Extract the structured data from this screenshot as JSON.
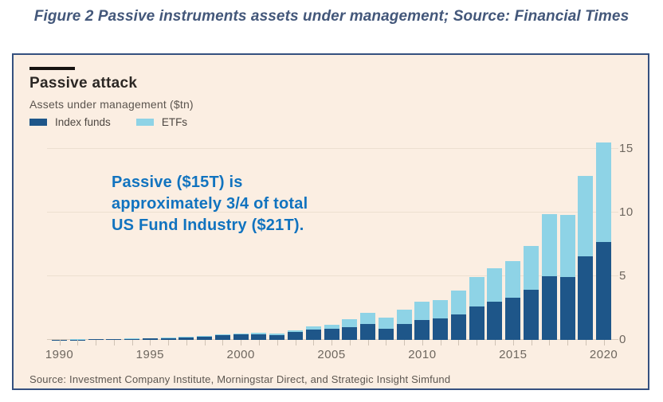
{
  "page_title": "Figure 2 Passive instruments assets under management; Source: Financial Times",
  "chart": {
    "title": "Passive attack",
    "subtitle": "Assets under management ($tn)",
    "legend": [
      {
        "label": "Index funds",
        "color": "#1e5689"
      },
      {
        "label": "ETFs",
        "color": "#8ed3e6"
      }
    ],
    "annotation": {
      "lines": [
        "Passive ($15T) is",
        "approximately 3/4 of total",
        "US Fund Industry ($21T)."
      ],
      "color": "#1173bf"
    },
    "source": "Source: Investment Company Institute, Morningstar Direct, and Strategic Insight Simfund"
  },
  "colors": {
    "figure_background": "#fbeee2",
    "figure_border": "#35507f",
    "index_funds": "#1e5689",
    "etfs": "#8ed3e6",
    "caption_blue": "#43577a",
    "annotation_blue": "#1173bf"
  },
  "chart_data": {
    "type": "bar",
    "stacked": true,
    "title": "Passive attack",
    "ylabel": "Assets under management ($tn)",
    "x": [
      1990,
      1991,
      1992,
      1993,
      1994,
      1995,
      1996,
      1997,
      1998,
      1999,
      2000,
      2001,
      2002,
      2003,
      2004,
      2005,
      2006,
      2007,
      2008,
      2009,
      2010,
      2011,
      2012,
      2013,
      2014,
      2015,
      2016,
      2017,
      2018,
      2019,
      2020
    ],
    "series": [
      {
        "name": "Index funds",
        "color": "#1e5689",
        "values": [
          0.02,
          0.03,
          0.05,
          0.06,
          0.08,
          0.1,
          0.14,
          0.2,
          0.28,
          0.4,
          0.44,
          0.45,
          0.4,
          0.6,
          0.8,
          0.87,
          1.02,
          1.22,
          0.88,
          1.28,
          1.58,
          1.68,
          1.98,
          2.62,
          3.02,
          3.32,
          3.95,
          5.0,
          4.95,
          6.55,
          7.7
        ]
      },
      {
        "name": "ETFs",
        "color": "#8ed3e6",
        "values": [
          0.0,
          0.01,
          0.01,
          0.01,
          0.02,
          0.02,
          0.03,
          0.04,
          0.05,
          0.06,
          0.08,
          0.09,
          0.12,
          0.17,
          0.27,
          0.33,
          0.58,
          0.88,
          0.85,
          1.1,
          1.4,
          1.42,
          1.9,
          2.3,
          2.62,
          2.86,
          3.4,
          4.9,
          4.85,
          6.3,
          7.8
        ]
      }
    ],
    "xticks": [
      1990,
      1995,
      2000,
      2005,
      2010,
      2015,
      2020
    ],
    "yticks": [
      0,
      5,
      10,
      15
    ],
    "ylim": [
      0,
      15.6
    ],
    "grid": true,
    "legend_position": "top-left",
    "yaxis_side": "right"
  }
}
